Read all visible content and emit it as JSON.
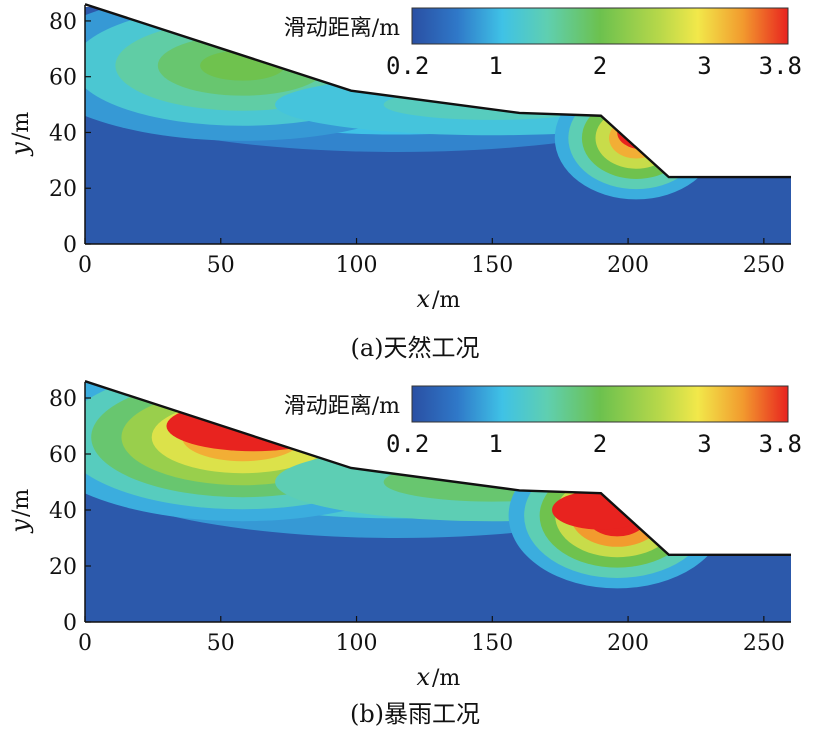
{
  "chart_data": [
    {
      "type": "heatmap",
      "caption": "(a)天然工况",
      "xlabel": "x",
      "xunit": "/m",
      "ylabel": "y",
      "yunit": "/m",
      "xlim": [
        0,
        260
      ],
      "ylim": [
        0,
        85
      ],
      "xticks": [
        0,
        50,
        100,
        150,
        200,
        250
      ],
      "yticks": [
        0,
        20,
        40,
        60,
        80
      ],
      "colorbar": {
        "label": "滑动距离/m",
        "min": 0.2,
        "max": 3.8,
        "ticks": [
          "0.2",
          "1",
          "2",
          "3",
          "3.8"
        ]
      },
      "slope_profile": [
        [
          0,
          86
        ],
        [
          98,
          55
        ],
        [
          160,
          47
        ],
        [
          190,
          46
        ],
        [
          215,
          24
        ],
        [
          260,
          24
        ]
      ],
      "zones": [
        {
          "name": "upper",
          "center": [
            60,
            63
          ],
          "max_value": 2.3
        },
        {
          "name": "toe",
          "center": [
            205,
            38
          ],
          "max_value": 3.8
        }
      ]
    },
    {
      "type": "heatmap",
      "caption": "(b)暴雨工况",
      "xlabel": "x",
      "xunit": "/m",
      "ylabel": "y",
      "yunit": "/m",
      "xlim": [
        0,
        260
      ],
      "ylim": [
        0,
        85
      ],
      "xticks": [
        0,
        50,
        100,
        150,
        200,
        250
      ],
      "yticks": [
        0,
        20,
        40,
        60,
        80
      ],
      "colorbar": {
        "label": "滑动距离/m",
        "min": 0.2,
        "max": 3.8,
        "ticks": [
          "0.2",
          "1",
          "2",
          "3",
          "3.8"
        ]
      },
      "slope_profile": [
        [
          0,
          86
        ],
        [
          98,
          55
        ],
        [
          160,
          47
        ],
        [
          190,
          46
        ],
        [
          215,
          24
        ],
        [
          260,
          24
        ]
      ],
      "zones": [
        {
          "name": "upper",
          "center": [
            60,
            65
          ],
          "max_value": 3.8
        },
        {
          "name": "toe",
          "center": [
            200,
            38
          ],
          "max_value": 3.8
        }
      ]
    }
  ],
  "colors": {
    "low": "#2c56a8",
    "cyan": "#3fc2e6",
    "green": "#6cc14e",
    "yellow": "#f2e84a",
    "orange": "#f29a2e",
    "red": "#e8231f",
    "outline": "#111111"
  }
}
